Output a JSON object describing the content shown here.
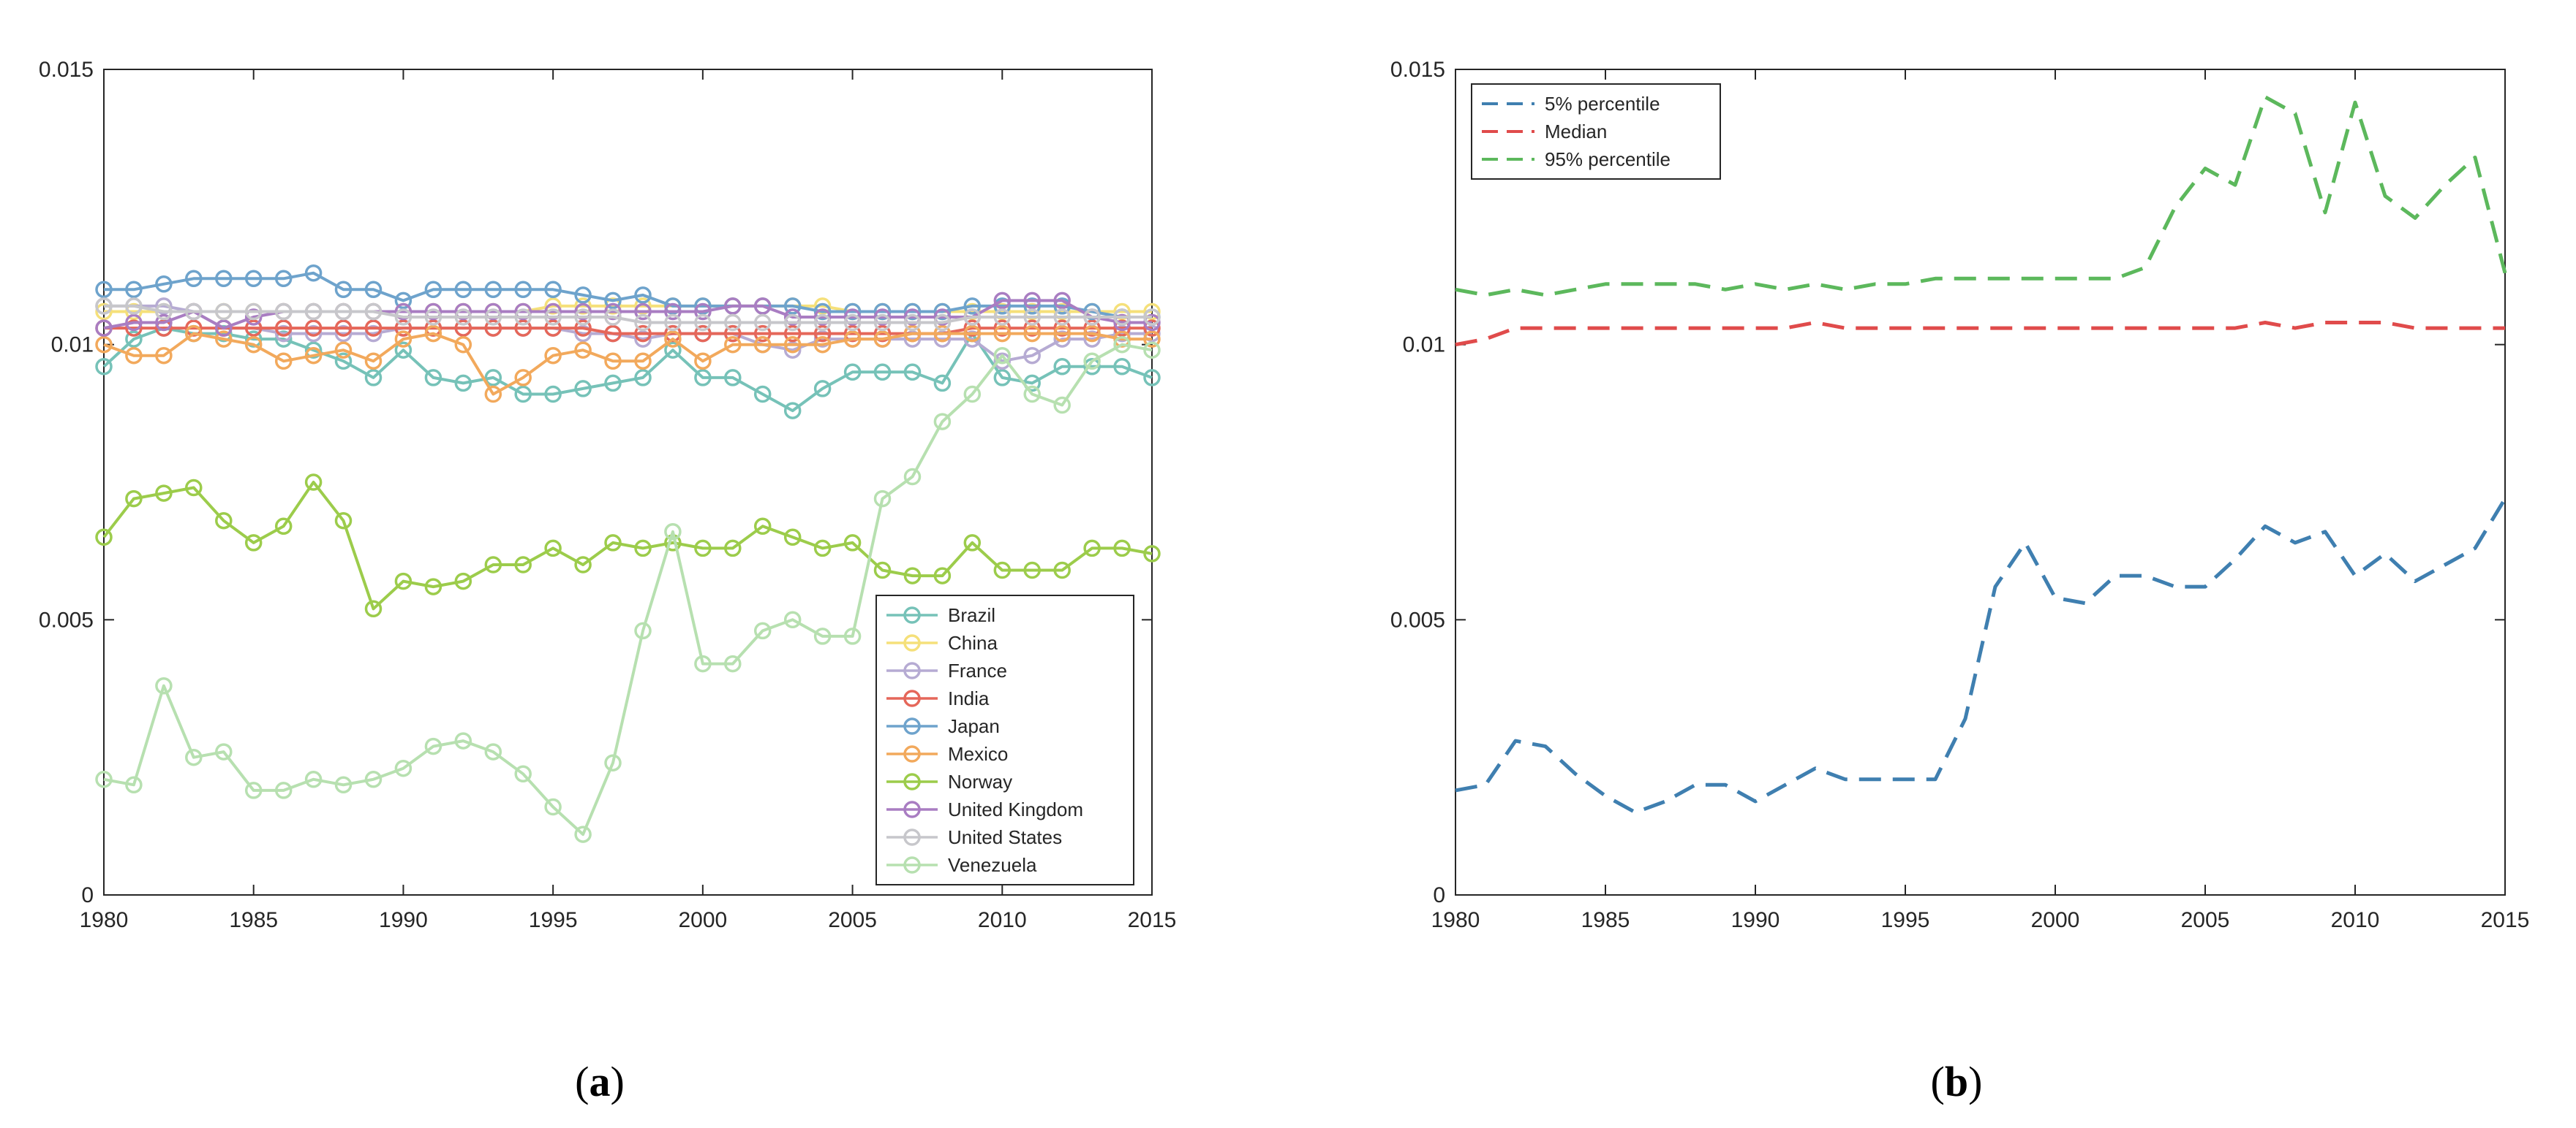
{
  "chart_data": [
    {
      "type": "line",
      "panel_label": {
        "open": "(",
        "letter": "a",
        "close": ")"
      },
      "x_range": [
        1980,
        2015
      ],
      "y_range": [
        0,
        0.015
      ],
      "x_ticks": [
        "1980",
        "1985",
        "1990",
        "1995",
        "2000",
        "2005",
        "2010",
        "2015"
      ],
      "x_tick_values": [
        1980,
        1985,
        1990,
        1995,
        2000,
        2005,
        2010,
        2015
      ],
      "y_ticks": [
        "0",
        "0.005",
        "0.01",
        "0.015"
      ],
      "y_tick_values": [
        0,
        0.005,
        0.01,
        0.015
      ],
      "grid": false,
      "legend_position": "lower-right",
      "x": [
        1980,
        1981,
        1982,
        1983,
        1984,
        1985,
        1986,
        1987,
        1988,
        1989,
        1990,
        1991,
        1992,
        1993,
        1994,
        1995,
        1996,
        1997,
        1998,
        1999,
        2000,
        2001,
        2002,
        2003,
        2004,
        2005,
        2006,
        2007,
        2008,
        2009,
        2010,
        2011,
        2012,
        2013,
        2014,
        2015
      ],
      "series": [
        {
          "name": "Brazil",
          "color": "#76c2b8",
          "values": [
            0.0096,
            0.0101,
            0.0103,
            0.0102,
            0.0102,
            0.0101,
            0.0101,
            0.0099,
            0.0097,
            0.0094,
            0.0099,
            0.0094,
            0.0093,
            0.0094,
            0.0091,
            0.0091,
            0.0092,
            0.0093,
            0.0094,
            0.0099,
            0.0094,
            0.0094,
            0.0091,
            0.0088,
            0.0092,
            0.0095,
            0.0095,
            0.0095,
            0.0093,
            0.0102,
            0.0094,
            0.0093,
            0.0096,
            0.0096,
            0.0096,
            0.0094
          ]
        },
        {
          "name": "China",
          "color": "#f5e07a",
          "values": [
            0.0106,
            0.0106,
            0.0106,
            0.0106,
            0.0106,
            0.0106,
            0.0106,
            0.0106,
            0.0106,
            0.0106,
            0.0106,
            0.0106,
            0.0106,
            0.0106,
            0.0106,
            0.0107,
            0.0107,
            0.0107,
            0.0107,
            0.0107,
            0.0107,
            0.0107,
            0.0107,
            0.0107,
            0.0107,
            0.0106,
            0.0106,
            0.0106,
            0.0106,
            0.0106,
            0.0106,
            0.0106,
            0.0106,
            0.0106,
            0.0106,
            0.0106
          ]
        },
        {
          "name": "France",
          "color": "#b6abd3",
          "values": [
            0.0107,
            0.0107,
            0.0107,
            0.0106,
            0.0103,
            0.0103,
            0.0102,
            0.0102,
            0.0102,
            0.0102,
            0.0103,
            0.0103,
            0.0103,
            0.0103,
            0.0103,
            0.0103,
            0.0102,
            0.0102,
            0.0101,
            0.0102,
            0.0102,
            0.0102,
            0.01,
            0.0099,
            0.0101,
            0.0101,
            0.0101,
            0.0101,
            0.0101,
            0.0101,
            0.0097,
            0.0098,
            0.0101,
            0.0101,
            0.0102,
            0.0102
          ]
        },
        {
          "name": "India",
          "color": "#e5675a",
          "values": [
            0.0103,
            0.0103,
            0.0103,
            0.0103,
            0.0103,
            0.0103,
            0.0103,
            0.0103,
            0.0103,
            0.0103,
            0.0103,
            0.0103,
            0.0103,
            0.0103,
            0.0103,
            0.0103,
            0.0103,
            0.0102,
            0.0102,
            0.0102,
            0.0102,
            0.0102,
            0.0102,
            0.0102,
            0.0102,
            0.0102,
            0.0102,
            0.0102,
            0.0102,
            0.0103,
            0.0103,
            0.0103,
            0.0103,
            0.0103,
            0.0103,
            0.0103
          ]
        },
        {
          "name": "Japan",
          "color": "#6ea3cc",
          "values": [
            0.011,
            0.011,
            0.0111,
            0.0112,
            0.0112,
            0.0112,
            0.0112,
            0.0113,
            0.011,
            0.011,
            0.0108,
            0.011,
            0.011,
            0.011,
            0.011,
            0.011,
            0.0109,
            0.0108,
            0.0109,
            0.0107,
            0.0107,
            0.0107,
            0.0107,
            0.0107,
            0.0106,
            0.0106,
            0.0106,
            0.0106,
            0.0106,
            0.0107,
            0.0107,
            0.0107,
            0.0107,
            0.0106,
            0.0105,
            0.0105
          ]
        },
        {
          "name": "Mexico",
          "color": "#f2a95c",
          "values": [
            0.01,
            0.0098,
            0.0098,
            0.0102,
            0.0101,
            0.01,
            0.0097,
            0.0098,
            0.0099,
            0.0097,
            0.0101,
            0.0102,
            0.01,
            0.0091,
            0.0094,
            0.0098,
            0.0099,
            0.0097,
            0.0097,
            0.0101,
            0.0097,
            0.01,
            0.01,
            0.01,
            0.01,
            0.0101,
            0.0101,
            0.0102,
            0.0102,
            0.0102,
            0.0102,
            0.0102,
            0.0102,
            0.0102,
            0.0101,
            0.0101
          ]
        },
        {
          "name": "Norway",
          "color": "#9ccc4b",
          "values": [
            0.0065,
            0.0072,
            0.0073,
            0.0074,
            0.0068,
            0.0064,
            0.0067,
            0.0075,
            0.0068,
            0.0052,
            0.0057,
            0.0056,
            0.0057,
            0.006,
            0.006,
            0.0063,
            0.006,
            0.0064,
            0.0063,
            0.0064,
            0.0063,
            0.0063,
            0.0067,
            0.0065,
            0.0063,
            0.0064,
            0.0059,
            0.0058,
            0.0058,
            0.0064,
            0.0059,
            0.0059,
            0.0059,
            0.0063,
            0.0063,
            0.0062
          ]
        },
        {
          "name": "United Kingdom",
          "color": "#a97dc2",
          "values": [
            0.0103,
            0.0104,
            0.0104,
            0.0106,
            0.0103,
            0.0105,
            0.0106,
            0.0106,
            0.0106,
            0.0106,
            0.0106,
            0.0106,
            0.0106,
            0.0106,
            0.0106,
            0.0106,
            0.0106,
            0.0106,
            0.0106,
            0.0106,
            0.0106,
            0.0107,
            0.0107,
            0.0105,
            0.0105,
            0.0105,
            0.0105,
            0.0105,
            0.0105,
            0.0105,
            0.0108,
            0.0108,
            0.0108,
            0.0105,
            0.0104,
            0.0104
          ]
        },
        {
          "name": "United States",
          "color": "#c7c7cb",
          "values": [
            0.0107,
            0.0107,
            0.0106,
            0.0106,
            0.0106,
            0.0106,
            0.0106,
            0.0106,
            0.0106,
            0.0106,
            0.0105,
            0.0105,
            0.0105,
            0.0105,
            0.0105,
            0.0105,
            0.0105,
            0.0105,
            0.0104,
            0.0104,
            0.0104,
            0.0104,
            0.0104,
            0.0104,
            0.0104,
            0.0104,
            0.0104,
            0.0104,
            0.0104,
            0.0105,
            0.0105,
            0.0105,
            0.0105,
            0.0105,
            0.0105,
            0.0105
          ]
        },
        {
          "name": "Venezuela",
          "color": "#b7e0b0",
          "values": [
            0.0021,
            0.002,
            0.0038,
            0.0025,
            0.0026,
            0.0019,
            0.0019,
            0.0021,
            0.002,
            0.0021,
            0.0023,
            0.0027,
            0.0028,
            0.0026,
            0.0022,
            0.0016,
            0.0011,
            0.0024,
            0.0048,
            0.0066,
            0.0042,
            0.0042,
            0.0048,
            0.005,
            0.0047,
            0.0047,
            0.0072,
            0.0076,
            0.0086,
            0.0091,
            0.0098,
            0.0091,
            0.0089,
            0.0097,
            0.01,
            0.0099
          ]
        }
      ]
    },
    {
      "type": "line",
      "panel_label": {
        "open": "(",
        "letter": "b",
        "close": ")"
      },
      "x_range": [
        1980,
        2015
      ],
      "y_range": [
        0,
        0.015
      ],
      "x_ticks": [
        "1980",
        "1985",
        "1990",
        "1995",
        "2000",
        "2005",
        "2010",
        "2015"
      ],
      "x_tick_values": [
        1980,
        1985,
        1990,
        1995,
        2000,
        2005,
        2010,
        2015
      ],
      "y_ticks": [
        "0",
        "0.005",
        "0.01",
        "0.015"
      ],
      "y_tick_values": [
        0,
        0.005,
        0.01,
        0.015
      ],
      "grid": false,
      "legend_position": "top-left",
      "line_style": "dashed",
      "x": [
        1980,
        1981,
        1982,
        1983,
        1984,
        1985,
        1986,
        1987,
        1988,
        1989,
        1990,
        1991,
        1992,
        1993,
        1994,
        1995,
        1996,
        1997,
        1998,
        1999,
        2000,
        2001,
        2002,
        2003,
        2004,
        2005,
        2006,
        2007,
        2008,
        2009,
        2010,
        2011,
        2012,
        2013,
        2014,
        2015
      ],
      "series": [
        {
          "name": "5% percentile",
          "color": "#3f7fb0",
          "values": [
            0.0019,
            0.002,
            0.0028,
            0.0027,
            0.0022,
            0.0018,
            0.0015,
            0.0017,
            0.002,
            0.002,
            0.0017,
            0.002,
            0.0023,
            0.0021,
            0.0021,
            0.0021,
            0.0021,
            0.0032,
            0.0056,
            0.0064,
            0.0054,
            0.0053,
            0.0058,
            0.0058,
            0.0056,
            0.0056,
            0.0061,
            0.0067,
            0.0064,
            0.0066,
            0.0058,
            0.0062,
            0.0057,
            0.006,
            0.0063,
            0.0072
          ]
        },
        {
          "name": "Median",
          "color": "#e04b4b",
          "values": [
            0.01,
            0.0101,
            0.0103,
            0.0103,
            0.0103,
            0.0103,
            0.0103,
            0.0103,
            0.0103,
            0.0103,
            0.0103,
            0.0103,
            0.0104,
            0.0103,
            0.0103,
            0.0103,
            0.0103,
            0.0103,
            0.0103,
            0.0103,
            0.0103,
            0.0103,
            0.0103,
            0.0103,
            0.0103,
            0.0103,
            0.0103,
            0.0104,
            0.0103,
            0.0104,
            0.0104,
            0.0104,
            0.0103,
            0.0103,
            0.0103,
            0.0103
          ]
        },
        {
          "name": "95% percentile",
          "color": "#5cb85c",
          "values": [
            0.011,
            0.0109,
            0.011,
            0.0109,
            0.011,
            0.0111,
            0.0111,
            0.0111,
            0.0111,
            0.011,
            0.0111,
            0.011,
            0.0111,
            0.011,
            0.0111,
            0.0111,
            0.0112,
            0.0112,
            0.0112,
            0.0112,
            0.0112,
            0.0112,
            0.0112,
            0.0114,
            0.0125,
            0.0132,
            0.0129,
            0.0145,
            0.0142,
            0.0124,
            0.0144,
            0.0127,
            0.0123,
            0.0129,
            0.0134,
            0.0113
          ]
        }
      ]
    }
  ]
}
